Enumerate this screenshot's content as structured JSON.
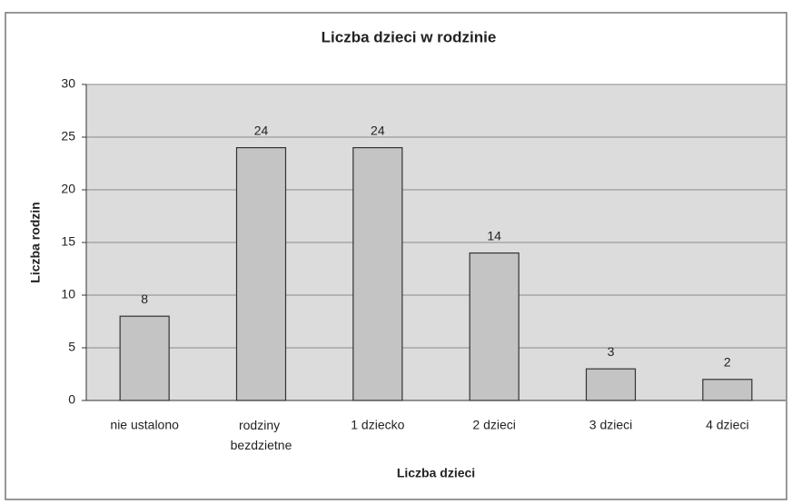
{
  "chart_data": {
    "type": "bar",
    "title": "Liczba dzieci w rodzinie",
    "x_label": "Liczba dzieci",
    "y_label": "Liczba rodzin",
    "categories": [
      "nie ustalono",
      "rodziny bezdzietne",
      "1 dziecko",
      "2 dzieci",
      "3 dzieci",
      "4 dzieci"
    ],
    "values": [
      8,
      24,
      24,
      14,
      3,
      2
    ],
    "color": "#c4c4c4",
    "ylim": [
      0,
      30
    ],
    "yticks": [
      0,
      5,
      10,
      15,
      20,
      25,
      30
    ],
    "grid": true
  }
}
